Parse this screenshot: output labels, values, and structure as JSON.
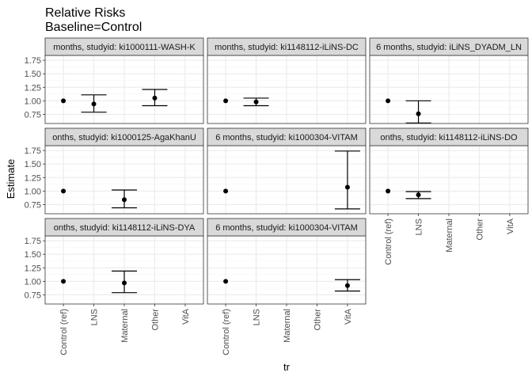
{
  "chart_data": {
    "type": "scatter",
    "title": "Relative Risks",
    "subtitle": "Baseline=Control",
    "xlabel": "tr",
    "ylabel": "Estimate",
    "categories": [
      "Control (ref)",
      "LNS",
      "Maternal",
      "Other",
      "VitA"
    ],
    "yticks": [
      0.75,
      1.0,
      1.25,
      1.5,
      1.75
    ],
    "ytick_labels": [
      "0.75",
      "1.00",
      "1.25",
      "1.50",
      "1.75"
    ],
    "ylim": [
      0.58,
      1.84
    ],
    "grid": true,
    "panels": [
      {
        "strip": "months, studyid: ki1000111-WASH-K",
        "points": [
          {
            "category": "Control (ref)",
            "estimate": 1.0
          },
          {
            "category": "LNS",
            "estimate": 0.94,
            "ci_lower": 0.79,
            "ci_upper": 1.11
          },
          {
            "category": "Other",
            "estimate": 1.05,
            "ci_lower": 0.91,
            "ci_upper": 1.21
          }
        ]
      },
      {
        "strip": "months, studyid: ki1148112-iLiNS-DC",
        "points": [
          {
            "category": "Control (ref)",
            "estimate": 1.0
          },
          {
            "category": "LNS",
            "estimate": 0.98,
            "ci_lower": 0.91,
            "ci_upper": 1.05
          }
        ]
      },
      {
        "strip": "6 months, studyid: iLiNS_DYADM_LN",
        "points": [
          {
            "category": "Control (ref)",
            "estimate": 1.0
          },
          {
            "category": "LNS",
            "estimate": 0.76,
            "ci_lower": 0.59,
            "ci_upper": 1.0
          }
        ]
      },
      {
        "strip": "onths, studyid: ki1000125-AgaKhanU",
        "points": [
          {
            "category": "Control (ref)",
            "estimate": 1.0
          },
          {
            "category": "Maternal",
            "estimate": 0.84,
            "ci_lower": 0.69,
            "ci_upper": 1.02
          }
        ]
      },
      {
        "strip": "6 months, studyid: ki1000304-VITAM",
        "points": [
          {
            "category": "Control (ref)",
            "estimate": 1.0
          },
          {
            "category": "VitA",
            "estimate": 1.07,
            "ci_lower": 0.67,
            "ci_upper": 1.74
          }
        ]
      },
      {
        "strip": "onths, studyid: ki1148112-iLiNS-DO",
        "points": [
          {
            "category": "Control (ref)",
            "estimate": 1.0
          },
          {
            "category": "LNS",
            "estimate": 0.93,
            "ci_lower": 0.86,
            "ci_upper": 0.99
          }
        ]
      },
      {
        "strip": "onths, studyid: ki1148112-iLiNS-DYA",
        "points": [
          {
            "category": "Control (ref)",
            "estimate": 1.0
          },
          {
            "category": "Maternal",
            "estimate": 0.97,
            "ci_lower": 0.79,
            "ci_upper": 1.19
          }
        ]
      },
      {
        "strip": "6 months, studyid: ki1000304-VITAM",
        "points": [
          {
            "category": "Control (ref)",
            "estimate": 1.0
          },
          {
            "category": "VitA",
            "estimate": 0.92,
            "ci_lower": 0.82,
            "ci_upper": 1.03
          }
        ]
      }
    ]
  },
  "colors": {
    "panel_background": "#ffffff",
    "panel_border": "#333333",
    "grid_major": "#ebebeb",
    "grid_minor": "#f5f5f5",
    "strip_fill": "#d9d9d9",
    "strip_border": "#333333",
    "marks": "#000000"
  }
}
